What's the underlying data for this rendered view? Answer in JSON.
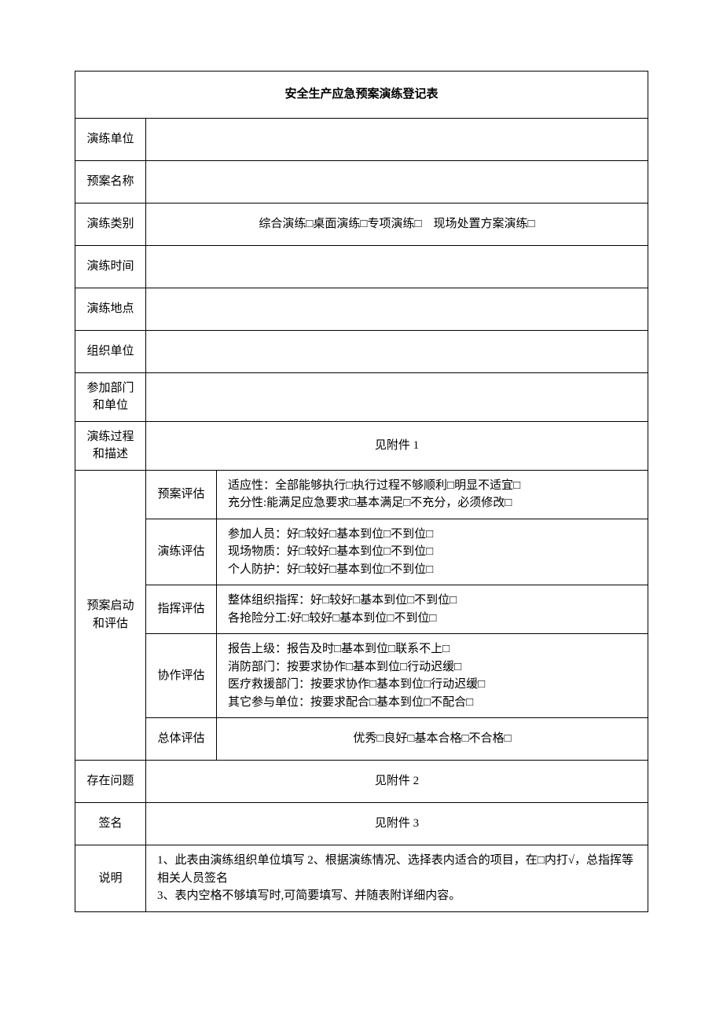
{
  "title": "安全生产应急预案演练登记表",
  "rows": {
    "unit": {
      "label": "演练单位",
      "value": ""
    },
    "plan_name": {
      "label": "预案名称",
      "value": ""
    },
    "category": {
      "label": "演练类别",
      "value": "综合演练□桌面演练□专项演练□　现场处置方案演练□"
    },
    "time": {
      "label": "演练时间",
      "value": ""
    },
    "location": {
      "label": "演练地点",
      "value": ""
    },
    "org_unit": {
      "label": "组织单位",
      "value": ""
    },
    "participants": {
      "label": "参加部门和单位",
      "value": ""
    },
    "process": {
      "label": "演练过程和描述",
      "value": "见附件 1"
    }
  },
  "evaluation": {
    "label": "预案启动和评估",
    "items": [
      {
        "label": "预案评估",
        "lines": [
          "适应性：全部能够执行□执行过程不够顺利□明显不适宜□",
          "充分性:能满足应急要求□基本满足□不充分，必须修改□"
        ]
      },
      {
        "label": "演练评估",
        "lines": [
          "参加人员：好□较好□基本到位□不到位□",
          "现场物质：好□较好□基本到位□不到位□",
          "个人防护：好□较好□基本到位□不到位□"
        ]
      },
      {
        "label": "指挥评估",
        "lines": [
          "整体组织指挥：好□较好□基本到位□不到位□",
          "各抢险分工:好□较好□基本到位□不到位□"
        ]
      },
      {
        "label": "协作评估",
        "lines": [
          "报告上级：报告及时□基本到位□联系不上□",
          "消防部门：按要求协作□基本到位□行动迟缓□",
          "医疗救援部门：按要求协作□基本到位□行动迟缓□",
          "其它参与单位：按要求配合□基本到位□不配合□"
        ]
      },
      {
        "label": "总体评估",
        "lines": [
          "优秀□良好□基本合格□不合格□"
        ]
      }
    ]
  },
  "problems": {
    "label": "存在问题",
    "value": "见附件 2"
  },
  "signature": {
    "label": "签名",
    "value": "见附件 3"
  },
  "notes": {
    "label": "说明",
    "lines": [
      "1、此表由演练组织单位填写 2、根据演练情况、选择表内适合的项目，在□内打√，总指挥等相关人员签名",
      "3、表内空格不够填写时,可简要填写、并随表附详细内容。"
    ]
  },
  "style": {
    "font_family": "SimSun",
    "title_fontsize": 24,
    "body_fontsize": 15,
    "border_color": "#000000",
    "background_color": "#ffffff"
  }
}
